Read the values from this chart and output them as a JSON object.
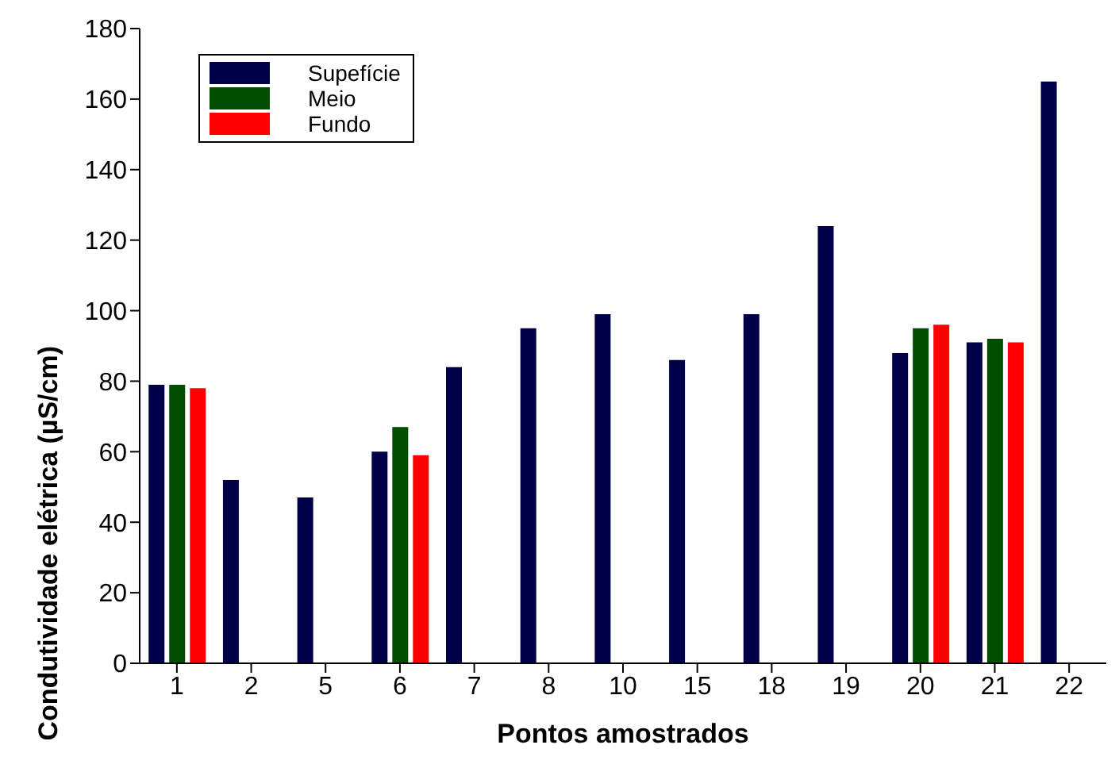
{
  "chart_data": {
    "type": "bar",
    "xlabel": "Pontos amostrados",
    "ylabel": "Condutividade elétrica (µS/cm)",
    "categories": [
      "1",
      "2",
      "5",
      "6",
      "7",
      "8",
      "10",
      "15",
      "18",
      "19",
      "20",
      "21",
      "22"
    ],
    "series": [
      {
        "name": "Supefície",
        "color": "#000048",
        "values": [
          79,
          52,
          47,
          60,
          84,
          95,
          99,
          86,
          99,
          124,
          88,
          91,
          165
        ]
      },
      {
        "name": "Meio",
        "color": "#004d00",
        "values": [
          79,
          null,
          null,
          67,
          null,
          null,
          null,
          null,
          null,
          null,
          95,
          92,
          null
        ]
      },
      {
        "name": "Fundo",
        "color": "#ff0000",
        "values": [
          78,
          null,
          null,
          59,
          null,
          null,
          null,
          null,
          null,
          null,
          96,
          91,
          null
        ]
      }
    ],
    "ylim": [
      0,
      180
    ],
    "yticks": [
      0,
      20,
      40,
      60,
      80,
      100,
      120,
      140,
      160,
      180
    ],
    "grid": false,
    "legend": "top left"
  }
}
